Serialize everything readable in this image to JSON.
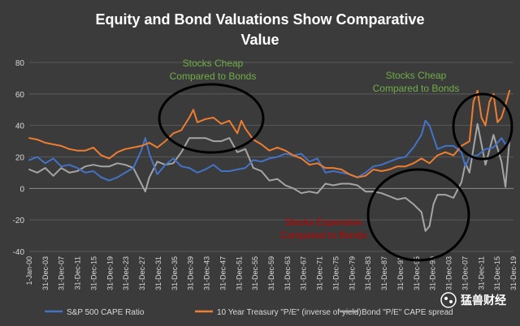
{
  "chart_data": {
    "type": "line",
    "title": "Equity and Bond Valuations Show Comparative Value",
    "title_lines": [
      "Equity and Bond Valuations Show Comparative",
      "Value"
    ],
    "xlabel": "",
    "ylabel": "",
    "ylim": [
      -40,
      80
    ],
    "yticks": [
      80,
      60,
      40,
      20,
      0,
      -20,
      -40
    ],
    "grid": true,
    "legend_position": "bottom",
    "xlim": [
      1900,
      2021
    ],
    "xtick_labels": [
      "1-Jan-00",
      "31-Dec-03",
      "31-Dec-07",
      "31-Dec-11",
      "31-Dec-15",
      "31-Dec-19",
      "31-Dec-23",
      "31-Dec-27",
      "31-Dec-31",
      "31-Dec-35",
      "31-Dec-39",
      "31-Dec-43",
      "31-Dec-47",
      "31-Dec-51",
      "31-Dec-55",
      "31-Dec-59",
      "31-Dec-63",
      "31-Dec-67",
      "31-Dec-71",
      "31-Dec-75",
      "31-Dec-79",
      "31-Dec-83",
      "31-Dec-87",
      "31-Dec-91",
      "31-Dec-95",
      "31-Dec-99",
      "31-Dec-03",
      "31-Dec-07",
      "31-Dec-11",
      "31-Dec-15",
      "31-Dec-19"
    ],
    "series": [
      {
        "name": "S&P 500 CAPE Ratio",
        "color": "#4472c4",
        "x": [
          1900,
          1902,
          1904,
          1906,
          1908,
          1910,
          1912,
          1914,
          1916,
          1918,
          1920,
          1922,
          1924,
          1926,
          1928,
          1929,
          1930,
          1932,
          1934,
          1936,
          1938,
          1940,
          1942,
          1944,
          1946,
          1948,
          1950,
          1952,
          1954,
          1956,
          1958,
          1960,
          1962,
          1964,
          1966,
          1968,
          1970,
          1972,
          1974,
          1976,
          1978,
          1980,
          1982,
          1984,
          1986,
          1988,
          1990,
          1992,
          1994,
          1996,
          1998,
          1999,
          2000,
          2002,
          2004,
          2006,
          2008,
          2009,
          2010,
          2012,
          2014,
          2016,
          2018,
          2019,
          2020
        ],
        "values": [
          18,
          20,
          16,
          19,
          14,
          15,
          13,
          10,
          11,
          7,
          5,
          7,
          10,
          13,
          24,
          32,
          22,
          9,
          15,
          19,
          14,
          13,
          10,
          12,
          15,
          11,
          11,
          12,
          13,
          18,
          17,
          19,
          20,
          22,
          21,
          22,
          17,
          19,
          10,
          11,
          10,
          9,
          7,
          10,
          14,
          15,
          17,
          19,
          20,
          26,
          34,
          43,
          40,
          25,
          27,
          27,
          23,
          14,
          20,
          21,
          25,
          26,
          32,
          28,
          31
        ]
      },
      {
        "name": "10 Year Treasury \"P/E\" (inverse of yield)",
        "color": "#ed7d31",
        "x": [
          1900,
          1902,
          1904,
          1906,
          1908,
          1910,
          1912,
          1914,
          1916,
          1918,
          1920,
          1922,
          1924,
          1926,
          1928,
          1930,
          1932,
          1934,
          1936,
          1938,
          1940,
          1941,
          1942,
          1944,
          1946,
          1948,
          1950,
          1952,
          1953,
          1954,
          1956,
          1958,
          1960,
          1962,
          1964,
          1966,
          1968,
          1970,
          1972,
          1974,
          1976,
          1978,
          1980,
          1982,
          1984,
          1986,
          1988,
          1990,
          1992,
          1994,
          1996,
          1998,
          2000,
          2002,
          2004,
          2006,
          2008,
          2010,
          2011,
          2012,
          2013,
          2014,
          2015,
          2016,
          2017,
          2018,
          2019,
          2020
        ],
        "values": [
          32,
          31,
          29,
          28,
          27,
          25,
          24,
          24,
          26,
          21,
          19,
          23,
          25,
          26,
          27,
          29,
          26,
          30,
          35,
          37,
          45,
          50,
          42,
          44,
          45,
          41,
          43,
          35,
          43,
          38,
          31,
          28,
          24,
          26,
          24,
          21,
          19,
          15,
          16,
          13,
          13,
          12,
          9,
          7,
          8,
          12,
          11,
          12,
          14,
          14,
          16,
          19,
          16,
          21,
          23,
          21,
          27,
          30,
          55,
          62,
          45,
          40,
          55,
          60,
          42,
          45,
          53,
          62
        ]
      },
      {
        "name": "Bond \"P/E\" CAPE spread",
        "color": "#a5a5a5",
        "x": [
          1900,
          1902,
          1904,
          1906,
          1908,
          1910,
          1912,
          1914,
          1916,
          1918,
          1920,
          1922,
          1924,
          1926,
          1928,
          1929,
          1930,
          1932,
          1934,
          1936,
          1938,
          1940,
          1942,
          1944,
          1946,
          1948,
          1950,
          1952,
          1954,
          1956,
          1958,
          1960,
          1962,
          1964,
          1966,
          1968,
          1970,
          1972,
          1974,
          1976,
          1978,
          1980,
          1982,
          1984,
          1986,
          1988,
          1990,
          1992,
          1994,
          1996,
          1998,
          1999,
          2000,
          2001,
          2002,
          2004,
          2006,
          2008,
          2009,
          2010,
          2012,
          2014,
          2016,
          2018,
          2019,
          2020
        ],
        "values": [
          12,
          10,
          13,
          8,
          13,
          10,
          11,
          14,
          15,
          14,
          14,
          16,
          15,
          13,
          3,
          -2,
          7,
          17,
          15,
          16,
          23,
          32,
          32,
          32,
          30,
          30,
          32,
          23,
          25,
          13,
          11,
          5,
          6,
          2,
          0,
          -3,
          -2,
          -3,
          3,
          2,
          3,
          3,
          2,
          -2,
          -2,
          -3,
          -5,
          -7,
          -6,
          -10,
          -15,
          -27,
          -24,
          -10,
          -4,
          -4,
          -6,
          4,
          16,
          10,
          41,
          15,
          34,
          17,
          1,
          31
        ]
      }
    ],
    "annotations": [
      {
        "lines": [
          "Stocks Cheap",
          "Compared to Bonds"
        ],
        "color": "#70ad47"
      },
      {
        "lines": [
          "Stocks Cheap",
          "Compared to Bonds"
        ],
        "color": "#70ad47"
      },
      {
        "lines": [
          "Stocks Expensive",
          "Compared to Bonds"
        ],
        "color": "#c00000"
      }
    ],
    "watermark": "猛兽财经"
  }
}
